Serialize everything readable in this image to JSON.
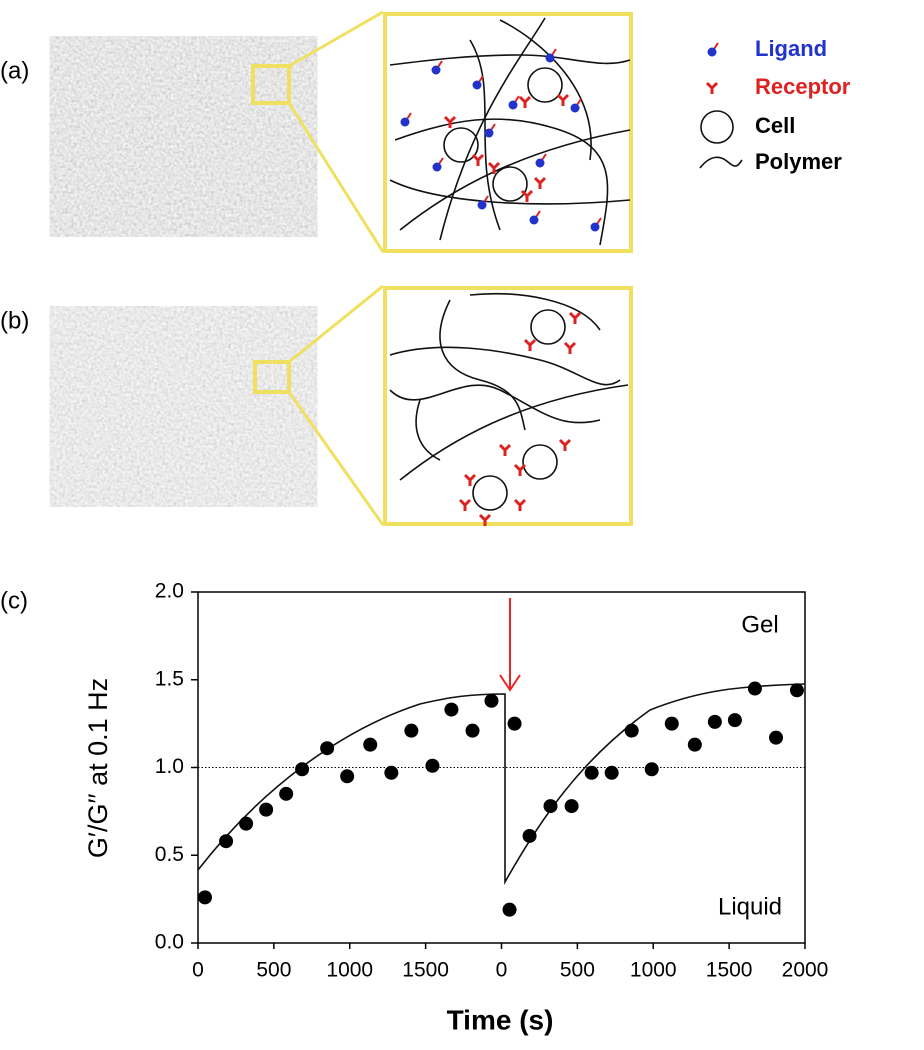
{
  "panels": [
    {
      "label": "(a)"
    },
    {
      "label": "(b)"
    }
  ],
  "legend": [
    {
      "label": "Ligand",
      "color": "#2233cc"
    },
    {
      "label": "Receptor",
      "color": "#dd2222"
    },
    {
      "label": "Cell",
      "color": "#000000"
    },
    {
      "label": "Polymer",
      "color": "#000000"
    }
  ],
  "chart_data": {
    "type": "scatter",
    "panel_label": "(c)",
    "ylabel": "G′/G′′ at 0.1 Hz",
    "xlabel": "Time (s)",
    "ylim": [
      0,
      2
    ],
    "yticks": [
      {
        "value": 0,
        "label": "0.0"
      },
      0.5,
      {
        "value": 1,
        "label": "1.0"
      },
      1.5,
      {
        "value": 2,
        "label": "2.0"
      }
    ],
    "threshold": 1,
    "annotations": [
      "Gel",
      "Liquid"
    ],
    "color": "#000000",
    "segments": [
      {
        "xlim": [
          0,
          2000
        ],
        "xticks": [
          0,
          500,
          1000,
          1500
        ],
        "x": [
          46,
          185,
          317,
          449,
          581,
          686,
          851,
          983,
          1135,
          1274,
          1406,
          1545,
          1670,
          1809,
          1934
        ],
        "values": [
          0.26,
          0.58,
          0.68,
          0.76,
          0.85,
          0.99,
          1.11,
          0.95,
          1.13,
          0.97,
          1.21,
          1.01,
          1.33,
          1.21,
          1.38
        ]
      },
      {
        "xlim": [
          0,
          2000
        ],
        "xticks": [
          0,
          500,
          1000,
          1500,
          2000
        ],
        "x": [
          86,
          53,
          185,
          323,
          462,
          594,
          726,
          858,
          990,
          1122,
          1274,
          1406,
          1538,
          1670,
          1809,
          1947
        ],
        "values": [
          1.25,
          0.19,
          0.61,
          0.78,
          0.78,
          0.97,
          0.97,
          1.21,
          0.99,
          1.25,
          1.13,
          1.26,
          1.27,
          1.45,
          1.17,
          1.44
        ]
      }
    ]
  }
}
